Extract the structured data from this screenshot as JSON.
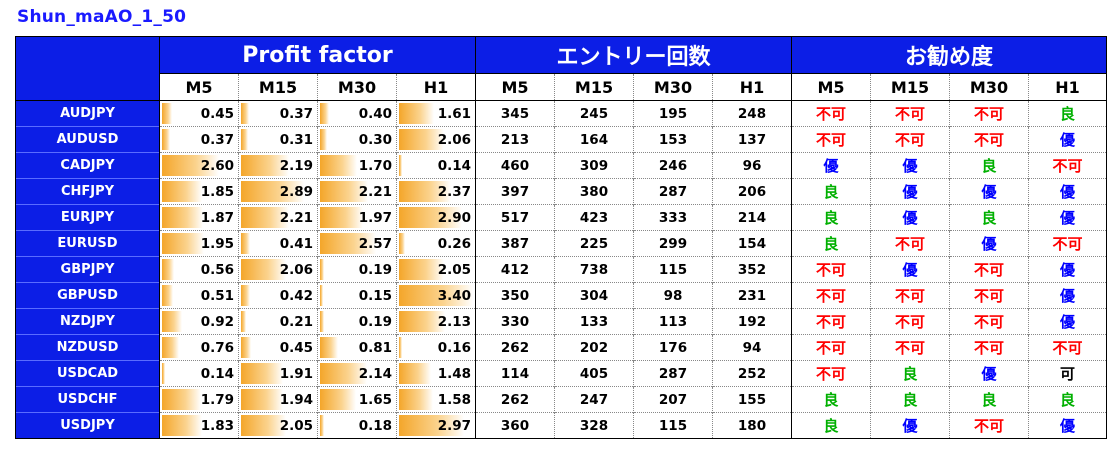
{
  "title": "Shun_maAO_1_50",
  "groups": {
    "profit_factor": "Profit factor",
    "entries": "エントリー回数",
    "rating": "お勧め度"
  },
  "timeframes": [
    "M5",
    "M15",
    "M30",
    "H1"
  ],
  "max_pf": 3.4,
  "colors": {
    "header_blue": "#0c1ee6",
    "title_blue": "#1a1aff",
    "bar_orange": "#f4a62a",
    "不可": "#ff0000",
    "良": "#00b000",
    "優": "#0000ff",
    "可": "#000000"
  },
  "rows": [
    {
      "pair": "AUDJPY",
      "pf": [
        "0.45",
        "0.37",
        "0.40",
        "1.61"
      ],
      "entries": [
        "345",
        "245",
        "195",
        "248"
      ],
      "rating": [
        "不可",
        "不可",
        "不可",
        "良"
      ]
    },
    {
      "pair": "AUDUSD",
      "pf": [
        "0.37",
        "0.31",
        "0.30",
        "2.06"
      ],
      "entries": [
        "213",
        "164",
        "153",
        "137"
      ],
      "rating": [
        "不可",
        "不可",
        "不可",
        "優"
      ]
    },
    {
      "pair": "CADJPY",
      "pf": [
        "2.60",
        "2.19",
        "1.70",
        "0.14"
      ],
      "entries": [
        "460",
        "309",
        "246",
        "96"
      ],
      "rating": [
        "優",
        "優",
        "良",
        "不可"
      ]
    },
    {
      "pair": "CHFJPY",
      "pf": [
        "1.85",
        "2.89",
        "2.21",
        "2.37"
      ],
      "entries": [
        "397",
        "380",
        "287",
        "206"
      ],
      "rating": [
        "良",
        "優",
        "優",
        "優"
      ]
    },
    {
      "pair": "EURJPY",
      "pf": [
        "1.87",
        "2.21",
        "1.97",
        "2.90"
      ],
      "entries": [
        "517",
        "423",
        "333",
        "214"
      ],
      "rating": [
        "良",
        "優",
        "良",
        "優"
      ]
    },
    {
      "pair": "EURUSD",
      "pf": [
        "1.95",
        "0.41",
        "2.57",
        "0.26"
      ],
      "entries": [
        "387",
        "225",
        "299",
        "154"
      ],
      "rating": [
        "良",
        "不可",
        "優",
        "不可"
      ]
    },
    {
      "pair": "GBPJPY",
      "pf": [
        "0.56",
        "2.06",
        "0.19",
        "2.05"
      ],
      "entries": [
        "412",
        "738",
        "115",
        "352"
      ],
      "rating": [
        "不可",
        "優",
        "不可",
        "優"
      ]
    },
    {
      "pair": "GBPUSD",
      "pf": [
        "0.51",
        "0.42",
        "0.15",
        "3.40"
      ],
      "entries": [
        "350",
        "304",
        "98",
        "231"
      ],
      "rating": [
        "不可",
        "不可",
        "不可",
        "優"
      ]
    },
    {
      "pair": "NZDJPY",
      "pf": [
        "0.92",
        "0.21",
        "0.19",
        "2.13"
      ],
      "entries": [
        "330",
        "133",
        "113",
        "192"
      ],
      "rating": [
        "不可",
        "不可",
        "不可",
        "優"
      ]
    },
    {
      "pair": "NZDUSD",
      "pf": [
        "0.76",
        "0.45",
        "0.81",
        "0.16"
      ],
      "entries": [
        "262",
        "202",
        "176",
        "94"
      ],
      "rating": [
        "不可",
        "不可",
        "不可",
        "不可"
      ]
    },
    {
      "pair": "USDCAD",
      "pf": [
        "0.14",
        "1.91",
        "2.14",
        "1.48"
      ],
      "entries": [
        "114",
        "405",
        "287",
        "252"
      ],
      "rating": [
        "不可",
        "良",
        "優",
        "可"
      ]
    },
    {
      "pair": "USDCHF",
      "pf": [
        "1.79",
        "1.94",
        "1.65",
        "1.58"
      ],
      "entries": [
        "262",
        "247",
        "207",
        "155"
      ],
      "rating": [
        "良",
        "良",
        "良",
        "良"
      ]
    },
    {
      "pair": "USDJPY",
      "pf": [
        "1.83",
        "2.05",
        "0.18",
        "2.97"
      ],
      "entries": [
        "360",
        "328",
        "115",
        "180"
      ],
      "rating": [
        "良",
        "優",
        "不可",
        "優"
      ]
    }
  ]
}
